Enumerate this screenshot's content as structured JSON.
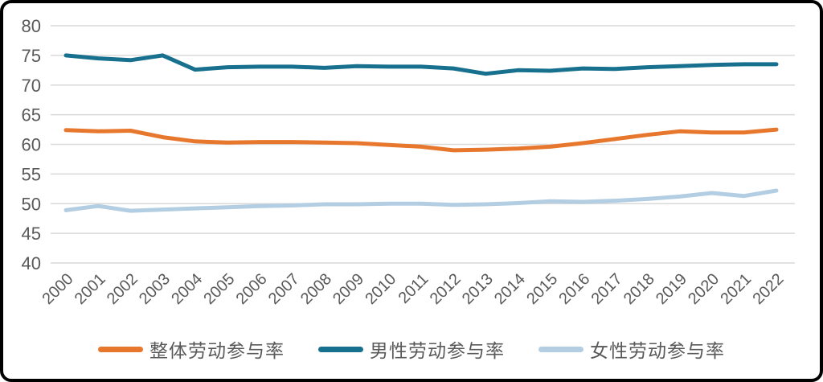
{
  "colors": {
    "grid": "#D9D9D9",
    "tick_text": "#595959",
    "frame_border": "#000000",
    "background": "#FFFFFF"
  },
  "chart_data": {
    "type": "line",
    "title": "",
    "xlabel": "",
    "ylabel": "",
    "ylim": [
      40,
      80
    ],
    "yticks": [
      40,
      45,
      50,
      55,
      60,
      65,
      70,
      75,
      80
    ],
    "grid": "horizontal",
    "legend_position": "bottom",
    "x_labels": [
      "2000",
      "2001",
      "2002",
      "2003",
      "2004",
      "2005",
      "2006",
      "2007",
      "2008",
      "2009",
      "2010",
      "2011",
      "2012",
      "2013",
      "2014",
      "2015",
      "2016",
      "2017",
      "2018",
      "2019",
      "2020",
      "2021",
      "2022"
    ],
    "series": [
      {
        "id": "overall",
        "name": "整体劳动参与率",
        "color": "#E8772E",
        "values": [
          62.4,
          62.2,
          62.3,
          61.2,
          60.5,
          60.3,
          60.4,
          60.4,
          60.3,
          60.2,
          59.9,
          59.6,
          59.0,
          59.1,
          59.3,
          59.6,
          60.2,
          60.9,
          61.6,
          62.2,
          62.0,
          62.0,
          62.5
        ]
      },
      {
        "id": "male",
        "name": "男性劳动参与率",
        "color": "#17718E",
        "values": [
          75.0,
          74.5,
          74.2,
          75.0,
          72.6,
          73.0,
          73.1,
          73.1,
          72.9,
          73.2,
          73.1,
          73.1,
          72.8,
          71.9,
          72.5,
          72.4,
          72.8,
          72.7,
          73.0,
          73.2,
          73.4,
          73.5,
          73.5
        ]
      },
      {
        "id": "female",
        "name": "女性劳动参与率",
        "color": "#B3CEE2",
        "values": [
          48.9,
          49.6,
          48.8,
          49.0,
          49.2,
          49.4,
          49.6,
          49.7,
          49.9,
          49.9,
          50.0,
          50.0,
          49.8,
          49.9,
          50.1,
          50.4,
          50.3,
          50.5,
          50.8,
          51.2,
          51.8,
          51.3,
          52.2
        ]
      }
    ]
  }
}
